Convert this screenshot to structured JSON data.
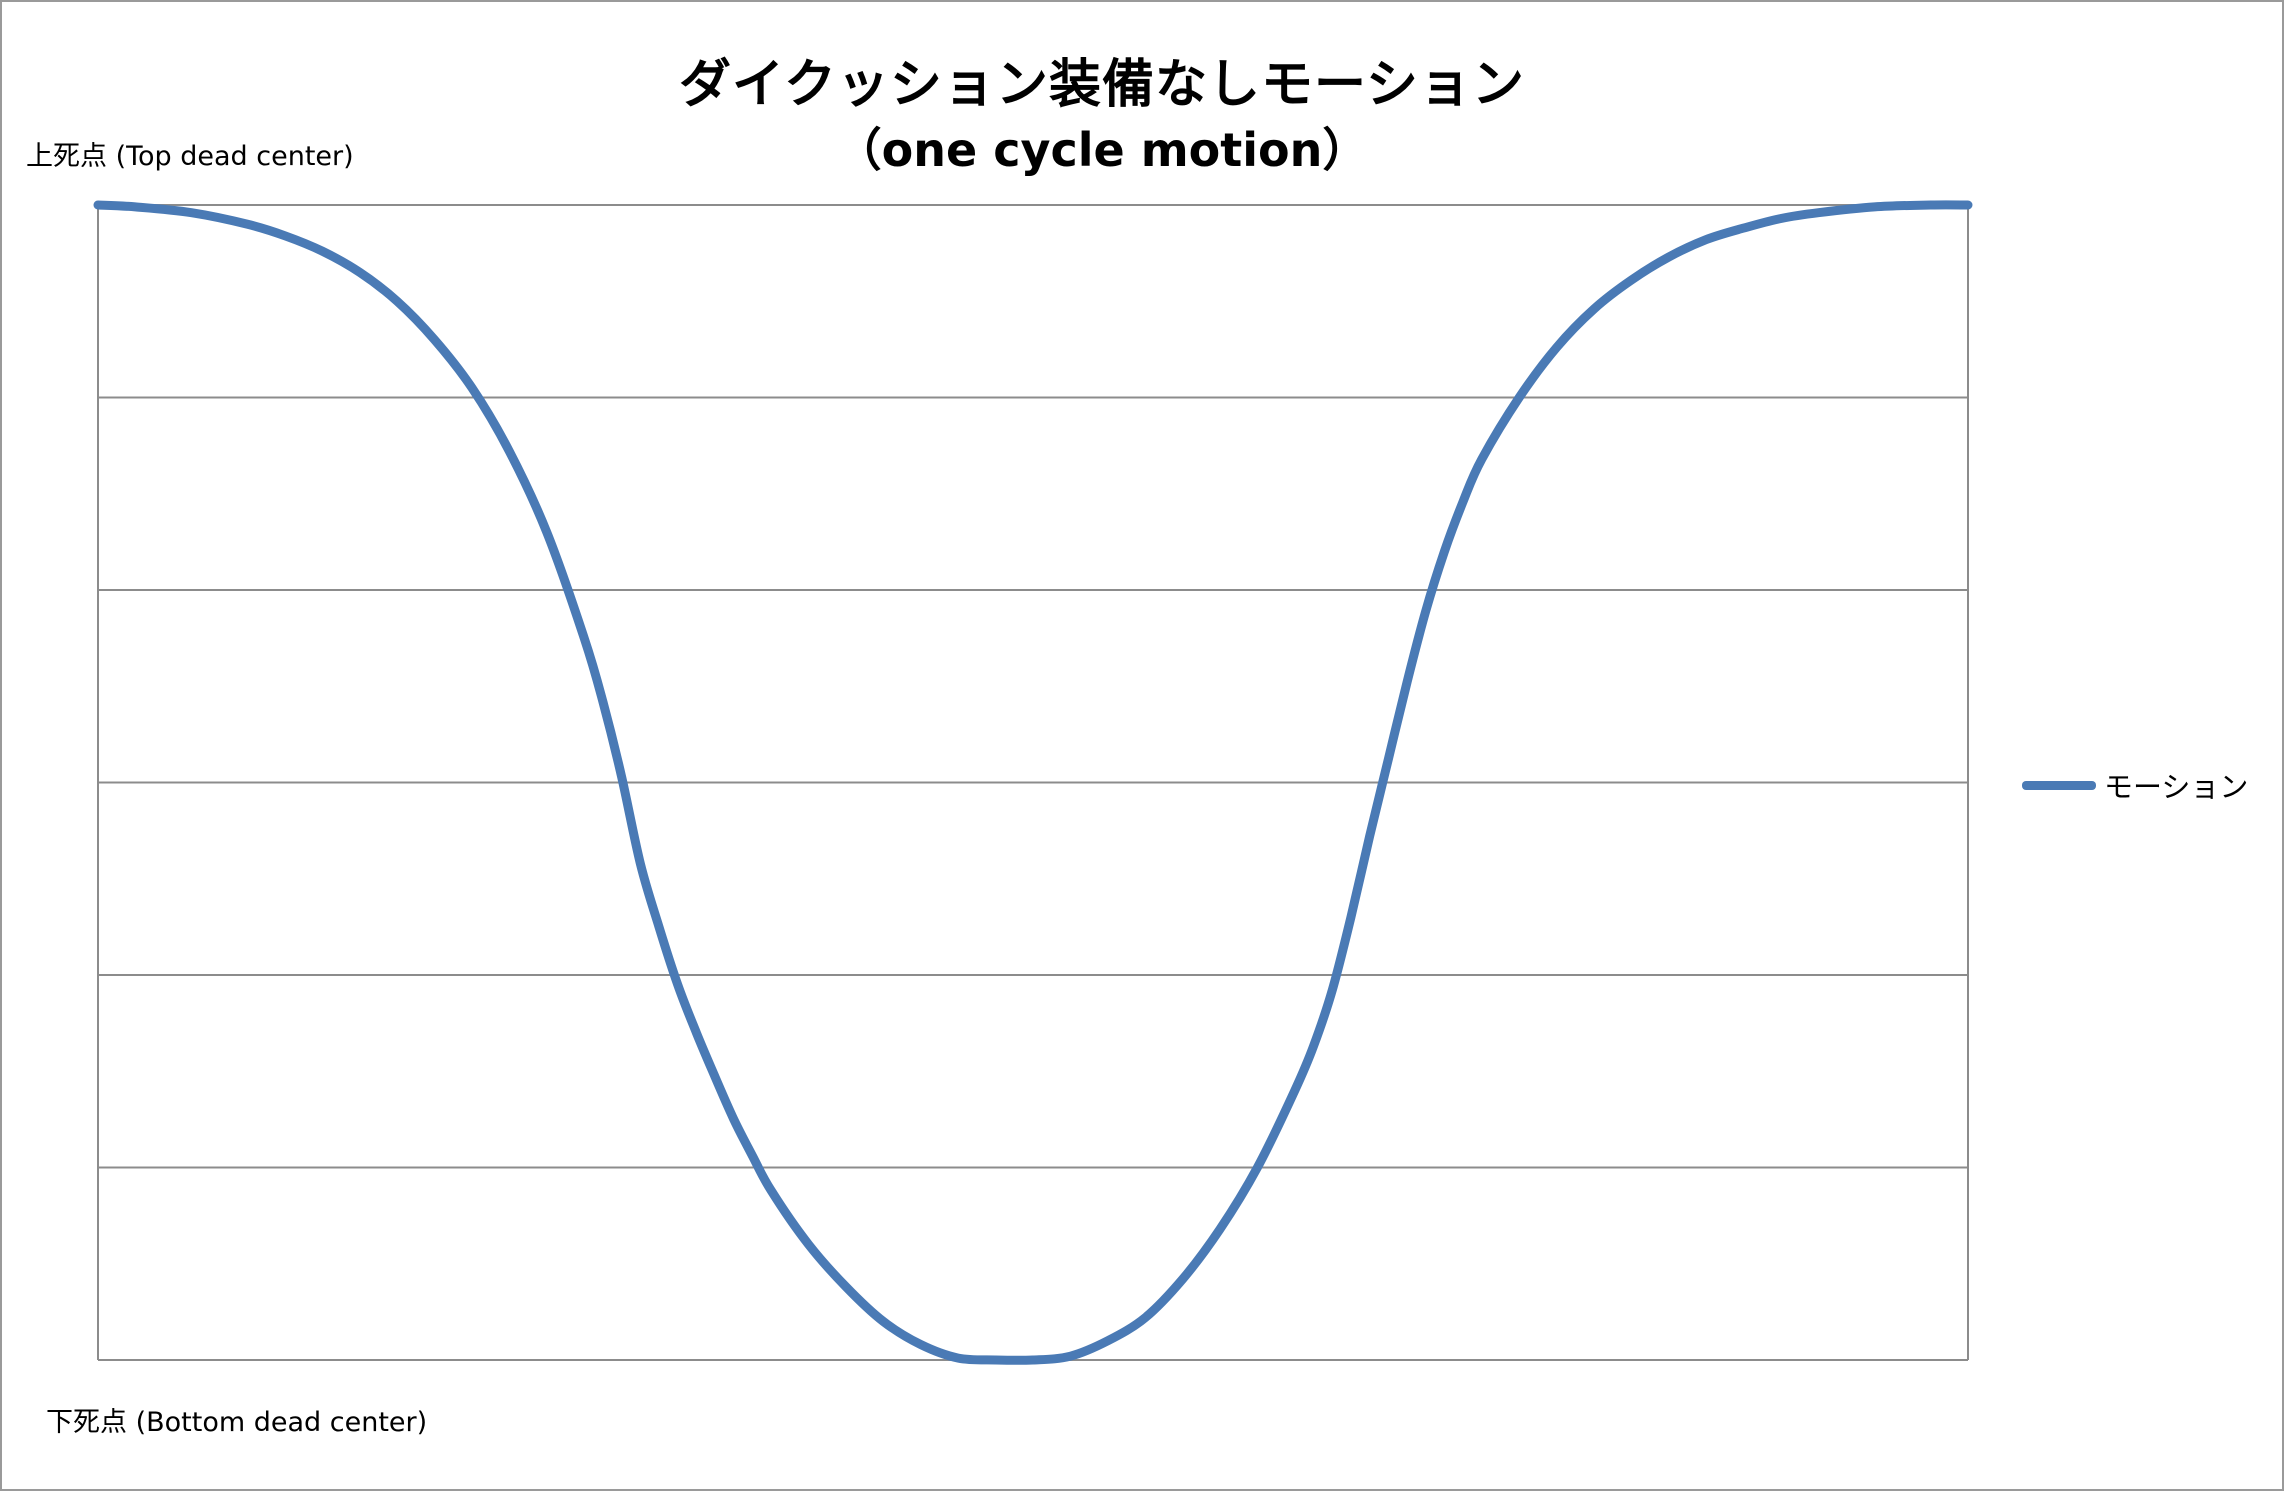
{
  "chart_data": {
    "type": "line",
    "title": "ダイクッション装備なしモーション",
    "subtitle": "（one cycle motion）",
    "top_label": "上死点 (Top dead center)",
    "bottom_label": "下死点 (Bottom dead center)",
    "xlabel": "",
    "ylabel": "",
    "xlim": [
      0,
      100
    ],
    "ylim": [
      0,
      6
    ],
    "grid": true,
    "legend_position": "right",
    "series": [
      {
        "name": "モーション",
        "color": "#4a7ab5",
        "x": [
          0,
          2,
          5,
          8,
          10,
          12,
          14,
          16,
          18,
          20,
          22,
          24,
          26,
          27,
          28,
          29,
          30,
          31,
          32,
          33,
          34,
          35,
          36,
          38,
          40,
          42,
          44,
          46,
          48,
          50,
          52,
          54,
          56,
          58,
          60,
          62,
          64,
          65,
          66,
          67,
          68,
          69,
          70,
          71,
          72,
          73,
          74,
          76,
          78,
          80,
          82,
          84,
          86,
          88,
          90,
          92,
          95,
          98,
          100
        ],
        "y": [
          6.0,
          5.99,
          5.96,
          5.9,
          5.84,
          5.76,
          5.65,
          5.5,
          5.3,
          5.05,
          4.72,
          4.3,
          3.75,
          3.42,
          3.03,
          2.58,
          2.25,
          1.95,
          1.7,
          1.47,
          1.25,
          1.06,
          0.88,
          0.6,
          0.38,
          0.2,
          0.08,
          0.01,
          0.0,
          0.0,
          0.02,
          0.1,
          0.22,
          0.42,
          0.68,
          1.0,
          1.4,
          1.63,
          1.92,
          2.3,
          2.72,
          3.12,
          3.52,
          3.89,
          4.2,
          4.46,
          4.68,
          5.0,
          5.26,
          5.46,
          5.61,
          5.73,
          5.82,
          5.88,
          5.93,
          5.96,
          5.99,
          6.0,
          6.0
        ]
      }
    ]
  }
}
